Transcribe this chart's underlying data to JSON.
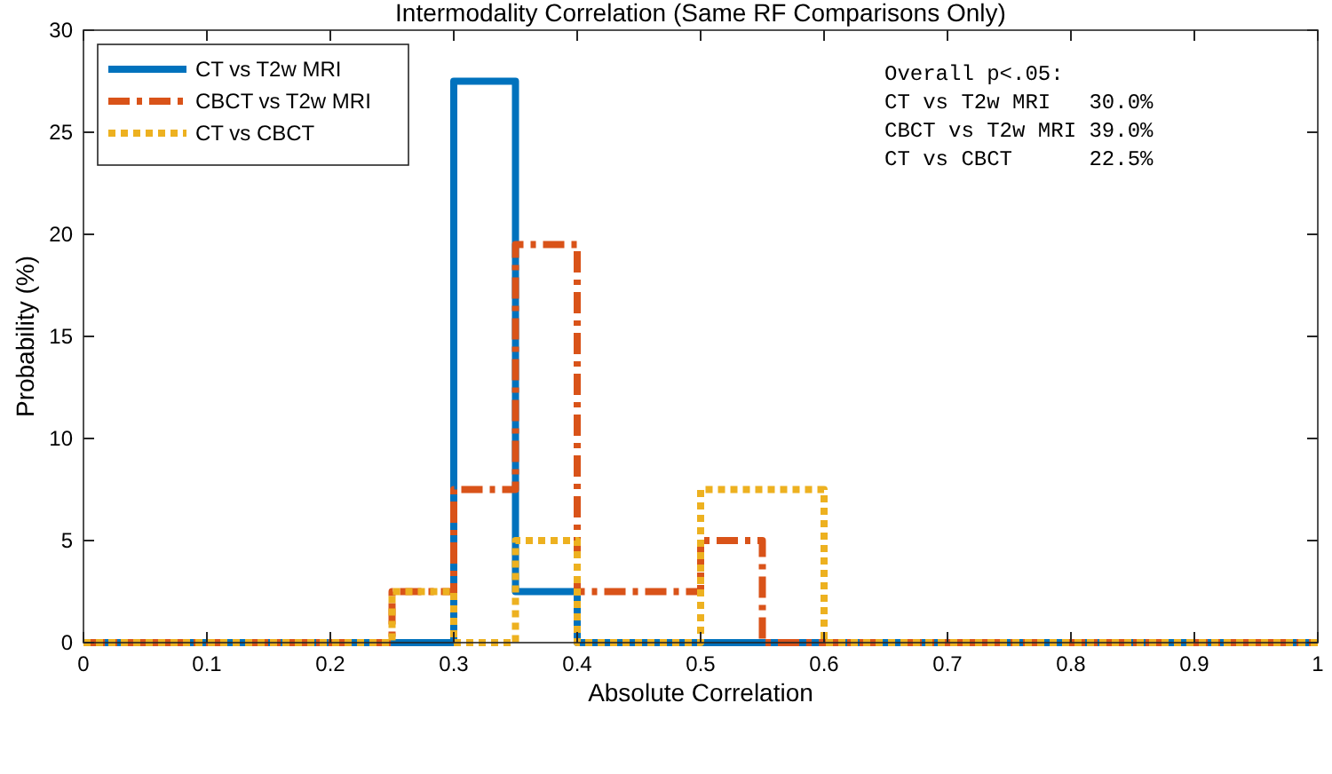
{
  "chart_data": {
    "type": "histogram",
    "title": "Intermodality Correlation (Same RF Comparisons Only)",
    "xlabel": "Absolute Correlation",
    "ylabel": "Probability (%)",
    "bins": [
      0,
      0.05,
      0.1,
      0.15,
      0.2,
      0.25,
      0.3,
      0.35,
      0.4,
      0.45,
      0.5,
      0.55,
      0.6,
      0.65,
      0.7,
      0.75,
      0.8,
      0.85,
      0.9,
      0.95,
      1
    ],
    "series": [
      {
        "name": "CT vs T2w MRI",
        "color": "#0072bd",
        "line_style": "solid",
        "values": [
          0,
          0,
          0,
          0,
          0,
          0,
          27.5,
          2.5,
          0,
          0,
          0,
          0,
          0,
          0,
          0,
          0,
          0,
          0,
          0,
          0
        ]
      },
      {
        "name": "CBCT vs T2w MRI",
        "color": "#d95319",
        "line_style": "dashed",
        "values": [
          0,
          0,
          0,
          0,
          0,
          2.5,
          7.5,
          19.5,
          2.5,
          2.5,
          5,
          0,
          0,
          0,
          0,
          0,
          0,
          0,
          0,
          0
        ]
      },
      {
        "name": "CT vs CBCT",
        "color": "#edb120",
        "line_style": "dotted",
        "values": [
          0,
          0,
          0,
          0,
          0,
          2.5,
          0,
          5,
          0,
          0,
          7.5,
          7.5,
          0,
          0,
          0,
          0,
          0,
          0,
          0,
          0
        ]
      }
    ],
    "xlim": [
      0,
      1
    ],
    "xticks": [
      0,
      0.1,
      0.2,
      0.3,
      0.4,
      0.5,
      0.6,
      0.7,
      0.8,
      0.9,
      1
    ],
    "ylim": [
      0,
      30
    ],
    "yticks": [
      0,
      5,
      10,
      15,
      20,
      25,
      30
    ],
    "grid": false,
    "legend": "top left",
    "annotations": [
      "Overall p<.05:",
      "CT vs T2w MRI   30.0%",
      "CBCT vs T2w MRI 39.0%",
      "CT vs CBCT      22.5%"
    ]
  }
}
